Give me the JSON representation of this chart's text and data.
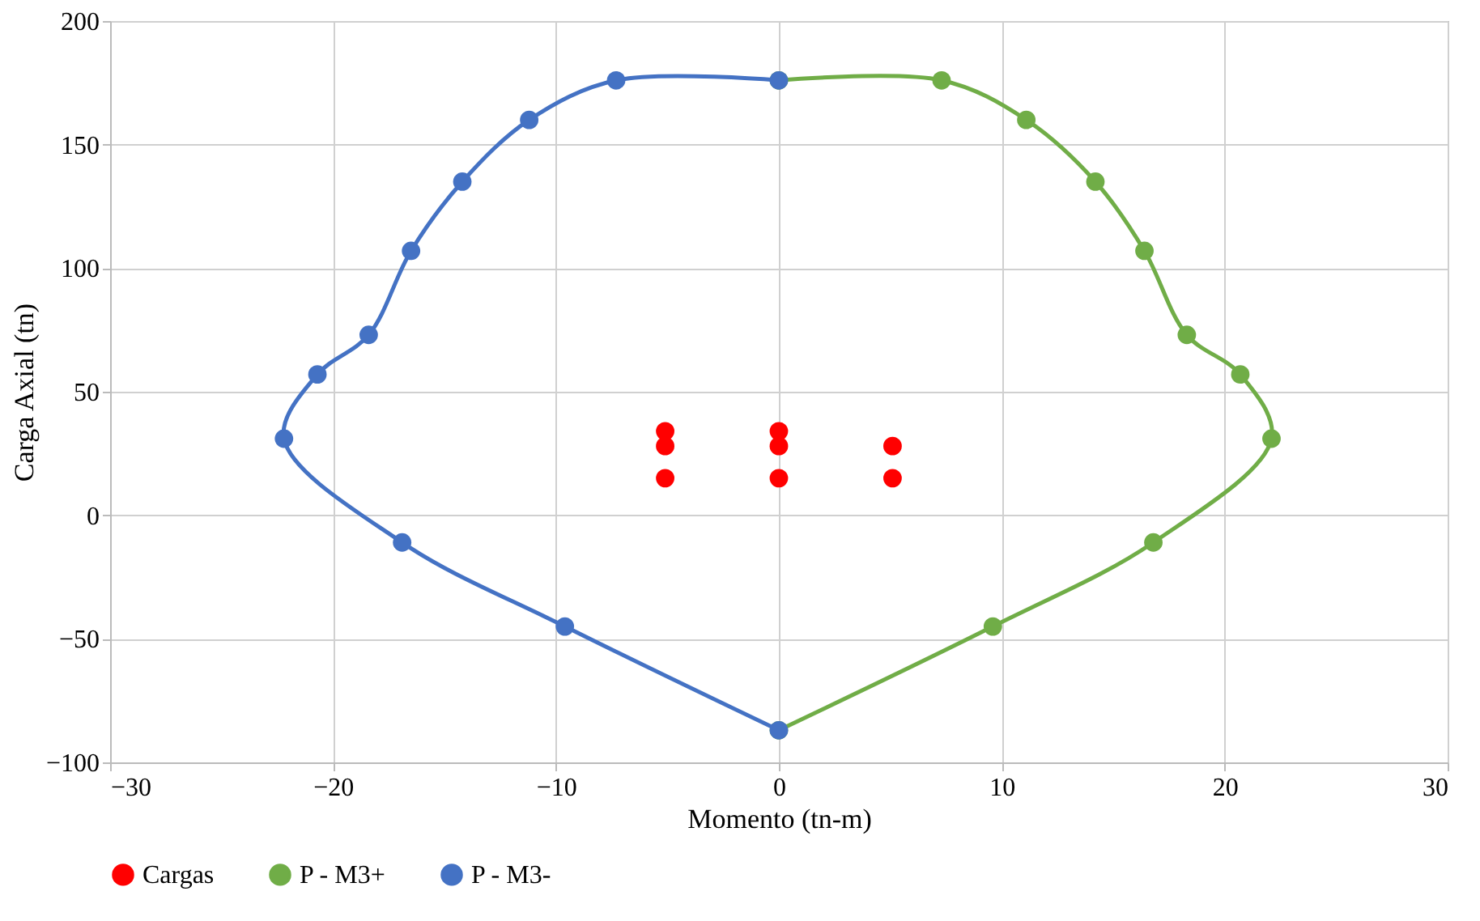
{
  "chart_data": {
    "type": "line",
    "xlabel": "Momento (tn-m)",
    "ylabel": "Carga Axial (tn)",
    "xlim": [
      -30,
      30
    ],
    "xticks": [
      -30,
      -20,
      -10,
      0,
      10,
      20,
      30
    ],
    "ylim": [
      -100,
      200
    ],
    "yticks": [
      -100,
      -50,
      0,
      50,
      100,
      150,
      200
    ],
    "grid": true,
    "legend": "bottom",
    "marker": "circle",
    "line_style": "solid",
    "series": [
      {
        "name": "Cargas",
        "type": "scatter",
        "color": "#ff0000",
        "x": [
          -5.1,
          -5.1,
          -5.1,
          0,
          0,
          0,
          5.1,
          5.1
        ],
        "values": [
          34,
          28,
          15,
          34,
          28,
          15,
          28,
          15
        ]
      },
      {
        "name": "P - M3+",
        "color": "#70ad47",
        "x": [
          0,
          7.3,
          11.1,
          14.2,
          16.4,
          18.3,
          20.7,
          22.1,
          16.8,
          9.6,
          0
        ],
        "values": [
          176,
          176,
          160,
          135,
          107,
          73,
          57,
          31,
          -11,
          -45,
          -87
        ]
      },
      {
        "name": "P - M3-",
        "color": "#4472c4",
        "x": [
          0,
          -7.3,
          -11.2,
          -14.2,
          -16.5,
          -18.4,
          -20.7,
          -22.2,
          -16.9,
          -9.6,
          0
        ],
        "values": [
          176,
          176,
          160,
          135,
          107,
          73,
          57,
          31,
          -11,
          -45,
          -87
        ]
      }
    ]
  }
}
